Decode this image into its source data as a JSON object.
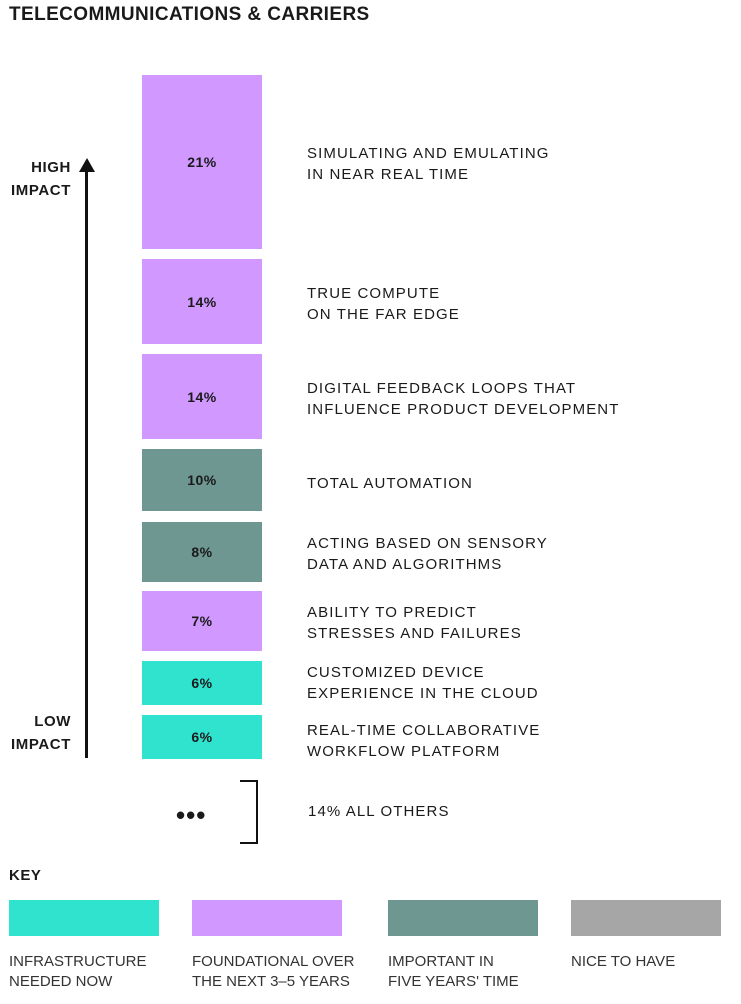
{
  "title": "TELECOMMUNICATIONS & CARRIERS",
  "axis": {
    "high_label": [
      "HIGH",
      "IMPACT"
    ],
    "low_label": [
      "LOW",
      "IMPACT"
    ]
  },
  "colors": {
    "infrastructure": "#30e3cf",
    "foundational": "#d199ff",
    "important": "#6e9791",
    "nice": "#a6a6a6"
  },
  "chart_data": {
    "type": "bar",
    "orientation": "stacked-ranking",
    "categories": [
      "SIMULATING AND EMULATING IN NEAR REAL TIME",
      "TRUE COMPUTE ON THE FAR EDGE",
      "DIGITAL FEEDBACK LOOPS THAT INFLUENCE PRODUCT DEVELOPMENT",
      "TOTAL AUTOMATION",
      "ACTING BASED ON SENSORY DATA AND ALGORITHMS",
      "ABILITY TO PREDICT STRESSES AND FAILURES",
      "CUSTOMIZED DEVICE EXPERIENCE IN THE CLOUD",
      "REAL-TIME COLLABORATIVE WORKFLOW PLATFORM"
    ],
    "items": [
      {
        "label_lines": [
          "SIMULATING AND EMULATING",
          "IN NEAR REAL TIME"
        ],
        "value": 21,
        "value_label": "21%",
        "key": "foundational"
      },
      {
        "label_lines": [
          "TRUE COMPUTE",
          "ON THE FAR EDGE"
        ],
        "value": 14,
        "value_label": "14%",
        "key": "foundational"
      },
      {
        "label_lines": [
          "DIGITAL FEEDBACK LOOPS THAT",
          "INFLUENCE PRODUCT DEVELOPMENT"
        ],
        "value": 14,
        "value_label": "14%",
        "key": "foundational"
      },
      {
        "label_lines": [
          "TOTAL AUTOMATION"
        ],
        "value": 10,
        "value_label": "10%",
        "key": "important"
      },
      {
        "label_lines": [
          "ACTING BASED ON SENSORY",
          "DATA AND ALGORITHMS"
        ],
        "value": 8,
        "value_label": "8%",
        "key": "important"
      },
      {
        "label_lines": [
          "ABILITY TO PREDICT",
          "STRESSES AND FAILURES"
        ],
        "value": 7,
        "value_label": "7%",
        "key": "foundational"
      },
      {
        "label_lines": [
          "CUSTOMIZED DEVICE",
          "EXPERIENCE IN THE CLOUD"
        ],
        "value": 6,
        "value_label": "6%",
        "key": "infrastructure"
      },
      {
        "label_lines": [
          "REAL-TIME COLLABORATIVE",
          "WORKFLOW PLATFORM"
        ],
        "value": 6,
        "value_label": "6%",
        "key": "infrastructure"
      }
    ],
    "others": {
      "value": 14,
      "dots": "•••",
      "label": "14% ALL OTHERS"
    }
  },
  "legend": {
    "title": "KEY",
    "items": [
      {
        "key": "infrastructure",
        "label_lines": [
          "INFRASTRUCTURE",
          "NEEDED NOW"
        ]
      },
      {
        "key": "foundational",
        "label_lines": [
          "FOUNDATIONAL OVER",
          "THE NEXT 3–5 YEARS"
        ]
      },
      {
        "key": "important",
        "label_lines": [
          "IMPORTANT IN",
          "FIVE YEARS' TIME"
        ]
      },
      {
        "key": "nice",
        "label_lines": [
          "NICE TO HAVE"
        ]
      }
    ]
  }
}
